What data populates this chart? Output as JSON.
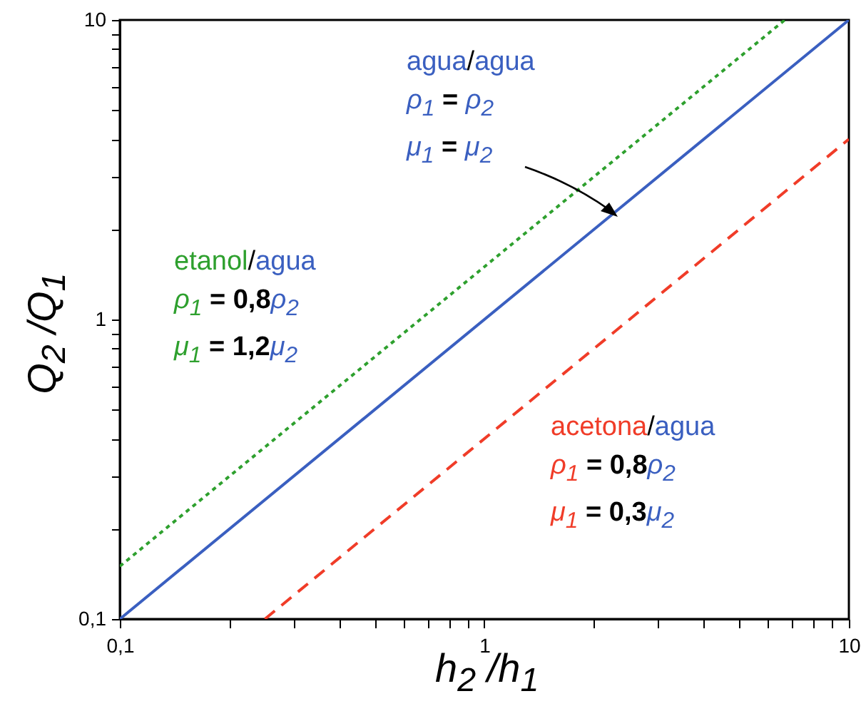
{
  "chart_data": {
    "type": "line",
    "xlabel": "h$_{2}$ /h$_{1}$",
    "ylabel": "Q$_{2}$ /Q$_{1}$",
    "log": "xy",
    "grid": false,
    "marker": "none",
    "xlim": [
      0.1,
      10
    ],
    "ylim": [
      0.1,
      10
    ],
    "xticks": [
      {
        "value": 0.1,
        "label": "0,1"
      },
      {
        "value": 0.2,
        "label": null
      },
      {
        "value": 0.3,
        "label": null
      },
      {
        "value": 0.4,
        "label": null
      },
      {
        "value": 0.5,
        "label": null
      },
      {
        "value": 0.6,
        "label": null
      },
      {
        "value": 0.7,
        "label": null
      },
      {
        "value": 0.8,
        "label": null
      },
      {
        "value": 0.9,
        "label": null
      },
      1,
      {
        "value": 2,
        "label": null
      },
      {
        "value": 3,
        "label": null
      },
      {
        "value": 4,
        "label": null
      },
      {
        "value": 5,
        "label": null
      },
      {
        "value": 6,
        "label": null
      },
      {
        "value": 7,
        "label": null
      },
      {
        "value": 8,
        "label": null
      },
      {
        "value": 9,
        "label": null
      },
      10
    ],
    "yticks": [
      {
        "value": 0.1,
        "label": "0,1"
      },
      {
        "value": 0.2,
        "label": null
      },
      {
        "value": 0.3,
        "label": null
      },
      {
        "value": 0.4,
        "label": null
      },
      {
        "value": 0.5,
        "label": null
      },
      {
        "value": 0.6,
        "label": null
      },
      {
        "value": 0.7,
        "label": null
      },
      {
        "value": 0.8,
        "label": null
      },
      {
        "value": 0.9,
        "label": null
      },
      1,
      {
        "value": 2,
        "label": null
      },
      {
        "value": 3,
        "label": null
      },
      {
        "value": 4,
        "label": null
      },
      {
        "value": 5,
        "label": null
      },
      {
        "value": 6,
        "label": null
      },
      {
        "value": 7,
        "label": null
      },
      {
        "value": 8,
        "label": null
      },
      {
        "value": 9,
        "label": null
      },
      10
    ],
    "series": [
      {
        "name": "agua/agua",
        "color": "#3a5fc0",
        "line_style": "solid",
        "x": [
          0.1,
          10
        ],
        "values": [
          0.1,
          10
        ]
      },
      {
        "name": "etanol/agua",
        "color": "#2ea02e",
        "line_style": "dotted",
        "x": [
          0.1,
          6.67
        ],
        "values": [
          0.15,
          10
        ]
      },
      {
        "name": "acetona/agua",
        "color": "#f03c28",
        "line_style": "dashed",
        "x": [
          0.25,
          10
        ],
        "values": [
          0.1,
          4
        ]
      }
    ],
    "annotations": [
      "ρ$_{1}$ = ρ$_{2}$",
      "μ$_{1}$ = μ$_{2}$",
      "ρ$_{1}$ = 0,8ρ$_{2}$",
      "μ$_{1}$ = 1,2μ$_{2}$",
      "ρ$_{1}$ = 0,8ρ$_{2}$",
      "μ$_{1}$ = 0,3μ$_{2}$"
    ]
  }
}
